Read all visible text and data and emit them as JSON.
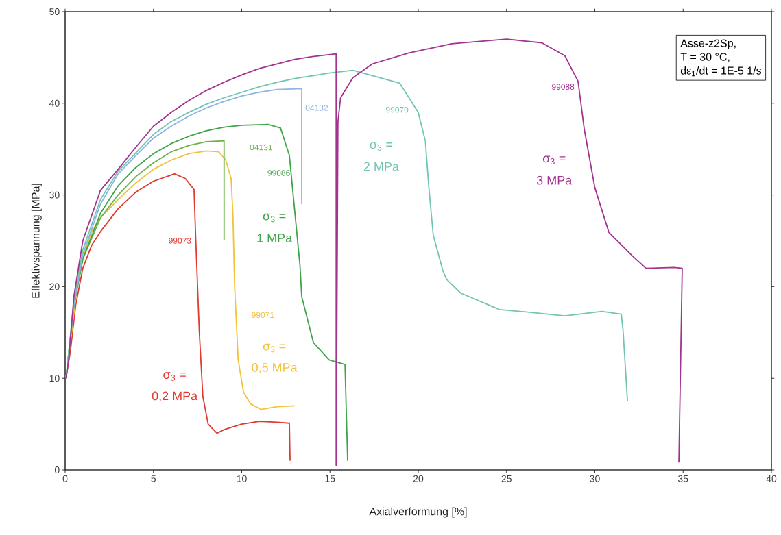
{
  "chart_data": {
    "type": "line",
    "xlabel": "Axialverformung [%]",
    "ylabel": "Effektivspannung [MPa]",
    "xlim": [
      0,
      40
    ],
    "ylim": [
      0,
      50
    ],
    "xticks": [
      0,
      5,
      10,
      15,
      20,
      25,
      30,
      35,
      40
    ],
    "yticks": [
      0,
      10,
      20,
      30,
      40,
      50
    ],
    "grid": false,
    "legend": false,
    "marker": "none",
    "line_style": "solid",
    "series": [
      {
        "name": "99073",
        "color": "#e03a30",
        "x": [
          0.05,
          0.3,
          0.6,
          1,
          1.5,
          2,
          3,
          4,
          5,
          6.2,
          6.8,
          7.3,
          7.4,
          7.5,
          7.6,
          7.8,
          8.1,
          8.6,
          9,
          10,
          11,
          12,
          12.7,
          12.74
        ],
        "values": [
          10,
          13,
          18,
          22,
          24.5,
          26,
          28.5,
          30.3,
          31.5,
          32.3,
          31.8,
          30.6,
          25,
          20,
          15,
          8,
          5,
          4.0,
          4.4,
          5,
          5.3,
          5.2,
          5.1,
          1.0
        ]
      },
      {
        "name": "99071",
        "color": "#f2c23a",
        "x": [
          0.05,
          0.8,
          1.5,
          2,
          3,
          4,
          5,
          6,
          7,
          8,
          8.7,
          9.1,
          9.4,
          9.5,
          9.6,
          9.8,
          10.1,
          10.5,
          11.1,
          12,
          13
        ],
        "values": [
          10,
          22,
          26,
          27.5,
          29.5,
          31.3,
          32.8,
          33.8,
          34.5,
          34.8,
          34.7,
          33.8,
          31.8,
          28,
          20,
          12,
          8.5,
          7.2,
          6.6,
          6.9,
          7.0
        ]
      },
      {
        "name": "04131",
        "color": "#6fb24a",
        "x": [
          0.05,
          0.5,
          1,
          2,
          3,
          4,
          5,
          6,
          7,
          8,
          9.0,
          9.0
        ],
        "values": [
          10,
          18,
          23,
          27.5,
          30,
          32,
          33.5,
          34.7,
          35.4,
          35.8,
          35.9,
          25.1
        ]
      },
      {
        "name": "99086",
        "color": "#3fa34a",
        "x": [
          0.05,
          0.5,
          1,
          2,
          3,
          4,
          5,
          6,
          7,
          8,
          9,
          10,
          11.5,
          12.2,
          12.7,
          13.3,
          13.4,
          14.06,
          14.95,
          15.85,
          16.0
        ],
        "values": [
          10,
          18,
          23,
          28,
          31,
          33,
          34.5,
          35.6,
          36.4,
          37,
          37.4,
          37.6,
          37.7,
          37.3,
          34.3,
          22.3,
          18.9,
          13.9,
          12.0,
          11.5,
          1.0
        ]
      },
      {
        "name": "04132",
        "color": "#8db4e2",
        "x": [
          0.05,
          0.5,
          1,
          2,
          3,
          4,
          5,
          6,
          7,
          8,
          9,
          10,
          11,
          12,
          13.4,
          13.4
        ],
        "values": [
          10,
          18,
          23.5,
          29,
          32.3,
          34.3,
          36.2,
          37.5,
          38.6,
          39.5,
          40.2,
          40.8,
          41.2,
          41.5,
          41.6,
          29.0
        ]
      },
      {
        "name": "99070",
        "color": "#72c4b4",
        "x": [
          0.05,
          0.5,
          1,
          2,
          3,
          4,
          5,
          6,
          7,
          8,
          9,
          10,
          11,
          12,
          13,
          14,
          14.95,
          16.3,
          18.95,
          20.0,
          20.4,
          20.6,
          20.85,
          21.4,
          21.6,
          22.4,
          23.5,
          24.6,
          26.3,
          28.3,
          30.4,
          31.5,
          31.6,
          31.85
        ],
        "values": [
          10,
          18.5,
          24,
          29.5,
          32.6,
          34.6,
          36.6,
          38,
          39,
          39.9,
          40.6,
          41.2,
          41.8,
          42.3,
          42.7,
          43.0,
          43.3,
          43.6,
          42.2,
          39.0,
          35.9,
          30.8,
          25.6,
          21.7,
          20.8,
          19.3,
          18.4,
          17.5,
          17.2,
          16.8,
          17.3,
          17.0,
          15.2,
          7.5
        ]
      },
      {
        "name": "99088",
        "color": "#a2338e",
        "x": [
          0.05,
          0.2,
          0.5,
          1,
          2,
          3,
          4,
          5,
          6,
          7,
          8,
          9,
          10,
          11,
          12,
          13,
          14,
          15.35,
          15.35,
          15.45,
          15.6,
          16.3,
          17.4,
          19.5,
          21.9,
          25.0,
          27.0,
          28.3,
          29.05,
          29.4,
          30.0,
          30.8,
          32.1,
          32.9,
          34.5,
          34.95,
          34.76
        ],
        "values": [
          10,
          12,
          19,
          25,
          30.5,
          32.8,
          35.2,
          37.5,
          39,
          40.3,
          41.4,
          42.3,
          43.1,
          43.8,
          44.3,
          44.8,
          45.1,
          45.4,
          0.5,
          38,
          40.6,
          42.8,
          44.3,
          45.5,
          46.5,
          47.0,
          46.6,
          45.2,
          42.4,
          37.2,
          30.8,
          25.9,
          23.4,
          22.0,
          22.1,
          22.0,
          0.8
        ]
      }
    ],
    "annotations": [
      "σ$_{3}$ =",
      "0,2 MPa",
      "σ$_{3}$ =",
      "0,5 MPa",
      "σ$_{3}$ =",
      "1 MPa",
      "σ$_{3}$ =",
      "2 MPa",
      "σ$_{3}$ =",
      "3 MPa",
      "Asse-z2Sp,",
      "T = 30 °C,",
      "dε$_{1}$/dt = 1E-5 1/s"
    ]
  }
}
